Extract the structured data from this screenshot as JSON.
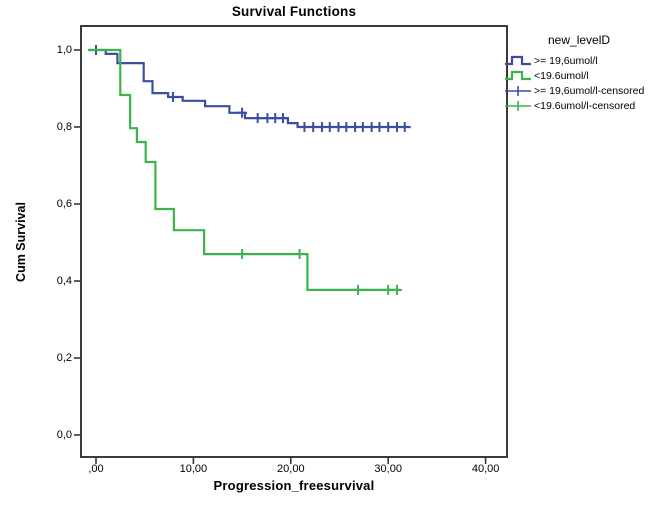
{
  "title": "Survival Functions",
  "x_axis": {
    "title": "Progression_freesurvival",
    "tick_labels": [
      ",00",
      "10,00",
      "20,00",
      "30,00",
      "40,00"
    ],
    "tick_values": [
      0,
      10,
      20,
      30,
      40
    ]
  },
  "y_axis": {
    "title": "Cum Survival",
    "tick_labels": [
      "1,0",
      "0,8",
      "0,6",
      "0,4",
      "0,2",
      "0,0"
    ],
    "tick_values": [
      1.0,
      0.8,
      0.6,
      0.4,
      0.2,
      0.0
    ]
  },
  "legend": {
    "title": "new_levelD",
    "entries": [
      {
        "label": ">= 19,6umol/l",
        "symbol": "step",
        "series": 0
      },
      {
        "label": "<19.6umol/l",
        "symbol": "step",
        "series": 1
      },
      {
        "label": ">= 19,6umol/l-censored",
        "symbol": "censor",
        "series": 0
      },
      {
        "label": "<19.6umol/l-censored",
        "symbol": "censor",
        "series": 1
      }
    ]
  },
  "chart_data": {
    "type": "line",
    "subtype": "kaplan-meier-step",
    "title": "Survival Functions",
    "xlabel": "Progression_freesurvival",
    "ylabel": "Cum Survival",
    "xlim": [
      -1.6,
      42.3
    ],
    "ylim": [
      -0.06,
      1.065
    ],
    "grid": false,
    "legend_position": "right",
    "frame_color": "#3a3a3a",
    "series": [
      {
        "name": ">= 19,6umol/l",
        "color": "#3c4da4",
        "steps": [
          [
            -0.8,
            1.0
          ],
          [
            1.0,
            1.0
          ],
          [
            1.0,
            0.99
          ],
          [
            2.2,
            0.99
          ],
          [
            2.2,
            0.966
          ],
          [
            4.9,
            0.966
          ],
          [
            4.9,
            0.919
          ],
          [
            5.8,
            0.919
          ],
          [
            5.8,
            0.888
          ],
          [
            7.4,
            0.888
          ],
          [
            7.4,
            0.878
          ],
          [
            8.9,
            0.878
          ],
          [
            8.9,
            0.868
          ],
          [
            11.2,
            0.868
          ],
          [
            11.2,
            0.854
          ],
          [
            13.7,
            0.854
          ],
          [
            13.7,
            0.837
          ],
          [
            15.3,
            0.837
          ],
          [
            15.3,
            0.823
          ],
          [
            19.7,
            0.823
          ],
          [
            19.7,
            0.81
          ],
          [
            20.7,
            0.81
          ],
          [
            20.7,
            0.8
          ],
          [
            32.3,
            0.8
          ]
        ],
        "censored": [
          [
            0.0,
            1.0
          ],
          [
            7.9,
            0.878
          ],
          [
            15.0,
            0.837
          ],
          [
            16.6,
            0.823
          ],
          [
            17.6,
            0.823
          ],
          [
            18.4,
            0.823
          ],
          [
            19.2,
            0.823
          ],
          [
            21.4,
            0.8
          ],
          [
            22.3,
            0.8
          ],
          [
            23.2,
            0.8
          ],
          [
            24.0,
            0.8
          ],
          [
            24.9,
            0.8
          ],
          [
            25.7,
            0.8
          ],
          [
            26.6,
            0.8
          ],
          [
            27.4,
            0.8
          ],
          [
            28.3,
            0.8
          ],
          [
            29.1,
            0.8
          ],
          [
            30.0,
            0.8
          ],
          [
            30.9,
            0.8
          ],
          [
            31.7,
            0.8
          ]
        ]
      },
      {
        "name": "<19.6umol/l",
        "color": "#3cb44b",
        "steps": [
          [
            -0.8,
            1.0
          ],
          [
            2.5,
            1.0
          ],
          [
            2.5,
            0.883
          ],
          [
            3.5,
            0.883
          ],
          [
            3.5,
            0.797
          ],
          [
            4.2,
            0.797
          ],
          [
            4.2,
            0.761
          ],
          [
            5.1,
            0.761
          ],
          [
            5.1,
            0.709
          ],
          [
            6.1,
            0.709
          ],
          [
            6.1,
            0.587
          ],
          [
            8.0,
            0.587
          ],
          [
            8.0,
            0.532
          ],
          [
            11.1,
            0.532
          ],
          [
            11.1,
            0.47
          ],
          [
            21.7,
            0.47
          ],
          [
            21.7,
            0.377
          ],
          [
            31.2,
            0.377
          ]
        ],
        "censored": [
          [
            15.0,
            0.47
          ],
          [
            20.9,
            0.47
          ],
          [
            26.9,
            0.377
          ],
          [
            30.0,
            0.377
          ],
          [
            30.9,
            0.377
          ]
        ]
      }
    ]
  }
}
